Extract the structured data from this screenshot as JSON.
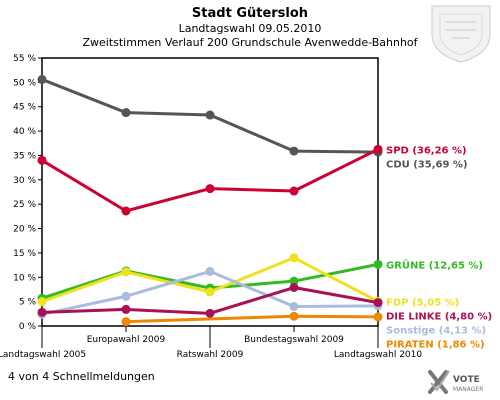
{
  "header": {
    "title": "Stadt Gütersloh",
    "subtitle1": "Landtagswahl 09.05.2010",
    "subtitle2": "Zweitstimmen Verlauf 200 Grundschule Avenwedde-Bahnhof"
  },
  "footer": {
    "text": "4 von 4 Schnellmeldungen"
  },
  "logo": {
    "line1": "VOTE",
    "line2": "MANAGER"
  },
  "chart_data": {
    "type": "line",
    "categories": [
      "Landtagswahl 2005",
      "Europawahl 2009",
      "Ratswahl 2009",
      "Bundestagswahl 2009",
      "Landtagswahl 2010"
    ],
    "ylim": [
      0,
      55
    ],
    "yticks": [
      "0 %",
      "5 %",
      "10 %",
      "15 %",
      "20 %",
      "25 %",
      "30 %",
      "35 %",
      "40 %",
      "45 %",
      "50 %",
      "55 %"
    ],
    "grid": false,
    "series": [
      {
        "name": "CDU",
        "label": "CDU (35,69 %)",
        "color": "#555555",
        "values": [
          50.6,
          43.8,
          43.3,
          35.9,
          35.69
        ]
      },
      {
        "name": "SPD",
        "label": "SPD (36,26 %)",
        "color": "#cc0033",
        "values": [
          34.0,
          23.6,
          28.2,
          27.7,
          36.26
        ]
      },
      {
        "name": "GRÜNE",
        "label": "GRÜNE (12,65 %)",
        "color": "#33bb22",
        "values": [
          5.7,
          11.3,
          7.8,
          9.2,
          12.65
        ]
      },
      {
        "name": "FDP",
        "label": "FDP (5,05 %)",
        "color": "#f0e020",
        "values": [
          5.0,
          11.1,
          7.0,
          14.0,
          5.05
        ]
      },
      {
        "name": "Sonstige",
        "label": "Sonstige (4,13 %)",
        "color": "#aabbdd",
        "values": [
          2.4,
          6.1,
          11.2,
          4.0,
          4.13
        ]
      },
      {
        "name": "DIE LINKE",
        "label": "DIE LINKE (4,80 %)",
        "color": "#aa1155",
        "values": [
          2.8,
          3.4,
          2.6,
          7.9,
          4.8
        ]
      },
      {
        "name": "PIRATEN",
        "label": "PIRATEN (1,86 %)",
        "color": "#ee8800",
        "values": [
          null,
          0.9,
          null,
          2.0,
          1.86
        ]
      }
    ]
  }
}
